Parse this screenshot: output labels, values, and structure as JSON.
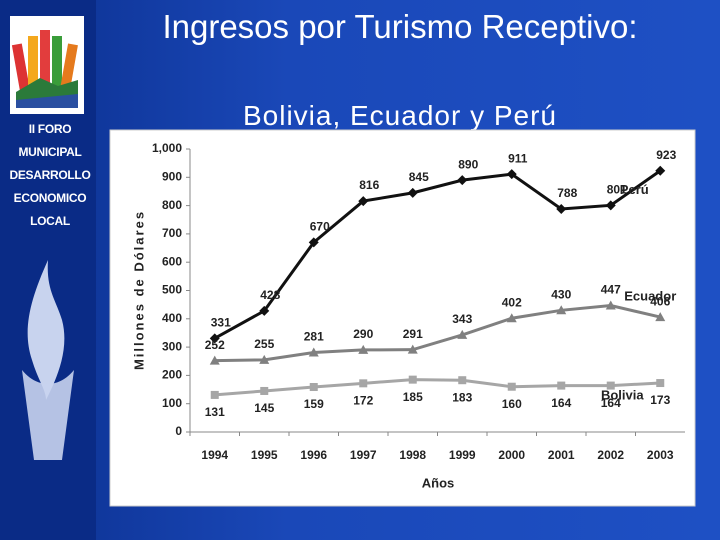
{
  "sidebar": {
    "lines": [
      "II FORO",
      "MUNICIPAL",
      "DESARROLLO",
      "ECONOMICO",
      "LOCAL"
    ]
  },
  "chart_data": {
    "type": "line",
    "title": "Ingresos por Turismo Receptivo:",
    "subtitle": "Bolivia, Ecuador y Perú",
    "y_label": "Millones de Dólares",
    "x_label": "Años",
    "categories": [
      "1994",
      "1995",
      "1996",
      "1997",
      "1998",
      "1999",
      "2000",
      "2001",
      "2002",
      "2003"
    ],
    "series": [
      {
        "name": "Perú",
        "color": "#111111",
        "marker": "diamond",
        "values": [
          331,
          428,
          670,
          816,
          845,
          890,
          911,
          788,
          801,
          923
        ]
      },
      {
        "name": "Ecuador",
        "color": "#808080",
        "marker": "triangle",
        "values": [
          252,
          255,
          281,
          290,
          291,
          343,
          402,
          430,
          447,
          406
        ]
      },
      {
        "name": "Bolivia",
        "color": "#a6a6a6",
        "marker": "square",
        "values": [
          131,
          145,
          159,
          172,
          185,
          183,
          160,
          164,
          164,
          173
        ]
      }
    ],
    "ylim": [
      0,
      1000
    ],
    "yticks": [
      0,
      100,
      200,
      300,
      400,
      500,
      600,
      700,
      800,
      900,
      {
        "value": 1000,
        "label": "1,000"
      }
    ],
    "grid": false
  }
}
